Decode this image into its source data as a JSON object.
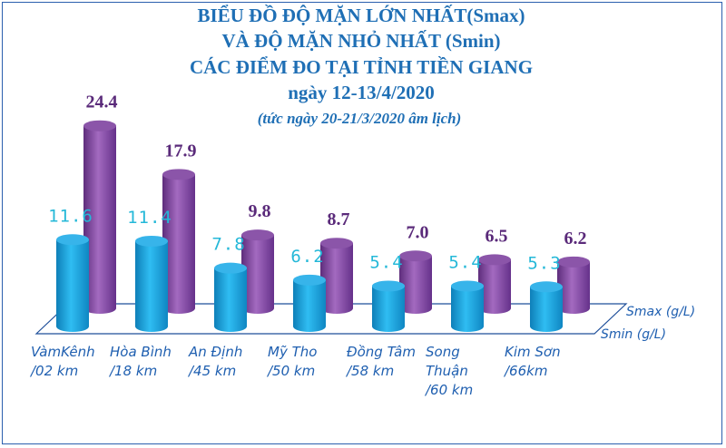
{
  "chart_data": {
    "type": "bar",
    "title_lines": [
      "BIỂU ĐỒ ĐỘ MẶN LỚN NHẤT(Smax)",
      "VÀ ĐỘ MẶN NHỎ NHẤT (Smin)",
      "CÁC ĐIỂM ĐO TẠI TỈNH TIỀN GIANG",
      "ngày 12-13/4/2020"
    ],
    "subtitle": "(tức ngày 20-21/3/2020 âm lịch)",
    "categories": [
      [
        "VàmKênh",
        "/02 km"
      ],
      [
        "Hòa Bình",
        "/18 km"
      ],
      [
        "An Định",
        "/45 km"
      ],
      [
        "Mỹ Tho",
        "/50 km"
      ],
      [
        "Đồng Tâm",
        "/58 km"
      ],
      [
        "Song",
        "Thuận",
        "/60 km"
      ],
      [
        "Kim Sơn",
        "/66km"
      ]
    ],
    "series": [
      {
        "name": "Smin (g/L)",
        "values": [
          11.6,
          11.4,
          7.8,
          6.2,
          5.4,
          5.4,
          5.3
        ],
        "labels": [
          "11.6",
          "11.4",
          "7.8",
          "6.2",
          "5.4",
          "5.4",
          "5.3"
        ],
        "color": "#1aa3e0"
      },
      {
        "name": "Smax (g/L)",
        "values": [
          24.4,
          17.9,
          9.8,
          8.7,
          7.0,
          6.5,
          6.2
        ],
        "labels": [
          "24.4",
          "17.9",
          "9.8",
          "8.7",
          "7.0",
          "6.5",
          "6.2"
        ],
        "color": "#8a4fa8"
      }
    ],
    "ylim": [
      0,
      26
    ],
    "grid": false,
    "legend_position": "right"
  },
  "colors": {
    "smin": "#1aa3e0",
    "smax": "#8a4fa8",
    "title": "#1f6fb5",
    "smin_label": "#24b8d8",
    "smax_label": "#5a2a7a"
  }
}
